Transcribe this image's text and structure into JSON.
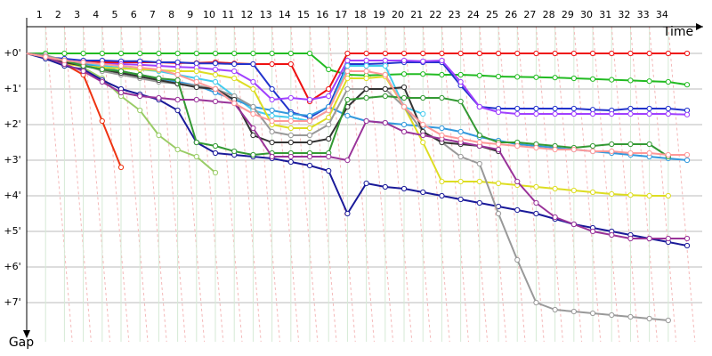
{
  "chart_data": {
    "type": "line",
    "x_label": "Time",
    "y_label": "Gap",
    "x": [
      0,
      1,
      2,
      3,
      4,
      5,
      6,
      7,
      8,
      9,
      10,
      11,
      12,
      13,
      14,
      15,
      16,
      17,
      18,
      19,
      20,
      21,
      22,
      23,
      24,
      25,
      26,
      27,
      28,
      29,
      30,
      31,
      32,
      33,
      34,
      35
    ],
    "xlim": [
      0,
      35.8
    ],
    "xticks": [
      1,
      2,
      3,
      4,
      5,
      6,
      7,
      8,
      9,
      10,
      11,
      12,
      13,
      14,
      15,
      16,
      17,
      18,
      19,
      20,
      21,
      22,
      23,
      24,
      25,
      26,
      27,
      28,
      29,
      30,
      31,
      32,
      33,
      34
    ],
    "ylim": [
      -0.75,
      8.1
    ],
    "yticks": [
      {
        "value": 0,
        "label": "+0'"
      },
      {
        "value": 1,
        "label": "+1'"
      },
      {
        "value": 2,
        "label": "+2'"
      },
      {
        "value": 3,
        "label": "+3'"
      },
      {
        "value": 4,
        "label": "+4'"
      },
      {
        "value": 5,
        "label": "+5'"
      },
      {
        "value": 6,
        "label": "+6'"
      },
      {
        "value": 7,
        "label": "+7'"
      }
    ],
    "grid": true,
    "series": [
      {
        "color": "#22bb22",
        "values": [
          0,
          0,
          0,
          0,
          0,
          0,
          0,
          0,
          0,
          0,
          0,
          0,
          0,
          0,
          0,
          0,
          0.45,
          0.6,
          0.62,
          0.6,
          0.58,
          0.58,
          0.6,
          0.6,
          0.62,
          0.65,
          0.66,
          0.67,
          0.68,
          0.7,
          0.72,
          0.74,
          0.76,
          0.78,
          0.8,
          0.88
        ]
      },
      {
        "color": "#ee1111",
        "values": [
          0,
          0.1,
          0.2,
          0.25,
          0.25,
          0.25,
          0.25,
          0.25,
          0.27,
          0.27,
          0.25,
          0.28,
          0.3,
          0.3,
          0.3,
          1.35,
          1.0,
          0,
          0,
          0,
          0,
          0,
          0,
          0,
          0,
          0,
          0,
          0,
          0,
          0,
          0,
          0,
          0,
          0,
          0,
          0
        ]
      },
      {
        "color": "#ee3311",
        "values": [
          0,
          0.1,
          0.3,
          0.6,
          1.9,
          3.2,
          null,
          null,
          null,
          null,
          null,
          null,
          null,
          null,
          null,
          null,
          null,
          null,
          null,
          null,
          null,
          null,
          null,
          null,
          null,
          null,
          null,
          null,
          null,
          null,
          null,
          null,
          null,
          null,
          null,
          null
        ]
      },
      {
        "color": "#99cc66",
        "values": [
          0,
          0.1,
          0.2,
          0.4,
          0.7,
          1.2,
          1.6,
          2.3,
          2.7,
          2.9,
          3.35,
          null,
          null,
          null,
          null,
          null,
          null,
          null,
          null,
          null,
          null,
          null,
          null,
          null,
          null,
          null,
          null,
          null,
          null,
          null,
          null,
          null,
          null,
          null,
          null,
          null
        ]
      },
      {
        "color": "#1a1a99",
        "values": [
          0,
          0.15,
          0.35,
          0.45,
          0.75,
          1.0,
          1.15,
          1.3,
          1.6,
          2.5,
          2.8,
          2.85,
          2.9,
          2.95,
          3.05,
          3.15,
          3.3,
          4.5,
          3.65,
          3.75,
          3.8,
          3.9,
          4.0,
          4.1,
          4.2,
          4.3,
          4.4,
          4.5,
          4.65,
          4.8,
          4.9,
          5.0,
          5.1,
          5.2,
          5.3,
          5.4
        ]
      },
      {
        "color": "#2233cc",
        "values": [
          0,
          0.1,
          0.15,
          0.2,
          0.2,
          0.22,
          0.22,
          0.25,
          0.25,
          0.28,
          0.28,
          0.3,
          0.3,
          1.0,
          1.65,
          1.8,
          1.5,
          0.3,
          0.3,
          0.28,
          0.25,
          0.25,
          0.25,
          0.9,
          1.5,
          1.55,
          1.55,
          1.55,
          1.55,
          1.55,
          1.58,
          1.6,
          1.55,
          1.55,
          1.55,
          1.6
        ]
      },
      {
        "color": "#a040ff",
        "values": [
          0,
          0.1,
          0.2,
          0.25,
          0.3,
          0.3,
          0.32,
          0.35,
          0.38,
          0.4,
          0.45,
          0.5,
          0.8,
          1.3,
          1.25,
          1.3,
          1.2,
          0.2,
          0.2,
          0.2,
          0.2,
          0.22,
          0.2,
          0.8,
          1.5,
          1.65,
          1.7,
          1.7,
          1.7,
          1.7,
          1.7,
          1.7,
          1.7,
          1.7,
          1.7,
          1.72
        ]
      },
      {
        "color": "#44ccee",
        "values": [
          0,
          0.1,
          0.2,
          0.3,
          0.35,
          0.4,
          0.45,
          0.5,
          0.6,
          0.7,
          0.8,
          1.2,
          1.6,
          1.75,
          1.8,
          1.9,
          1.6,
          0.35,
          0.35,
          0.35,
          1.5,
          1.7,
          null,
          null,
          null,
          null,
          null,
          null,
          null,
          null,
          null,
          null,
          null,
          null,
          null,
          null
        ]
      },
      {
        "color": "#3399dd",
        "values": [
          0,
          0.1,
          0.2,
          0.3,
          0.4,
          0.5,
          0.6,
          0.7,
          0.8,
          0.9,
          1.1,
          1.3,
          1.5,
          1.6,
          1.7,
          1.75,
          1.5,
          1.75,
          1.9,
          1.95,
          2.0,
          2.05,
          2.1,
          2.2,
          2.35,
          2.45,
          2.55,
          2.6,
          2.65,
          2.7,
          2.75,
          2.8,
          2.85,
          2.9,
          2.95,
          3.0
        ]
      },
      {
        "color": "#dddd22",
        "values": [
          0,
          0.1,
          0.3,
          0.35,
          0.4,
          0.42,
          0.45,
          0.47,
          0.5,
          0.5,
          0.6,
          0.7,
          1.0,
          2.0,
          2.1,
          2.1,
          1.8,
          0.7,
          0.7,
          0.65,
          1.5,
          2.5,
          3.6,
          3.6,
          3.6,
          3.65,
          3.7,
          3.75,
          3.8,
          3.85,
          3.9,
          3.95,
          3.98,
          4.0,
          4.0,
          null
        ]
      },
      {
        "color": "#999999",
        "values": [
          0,
          0.05,
          0.2,
          0.3,
          0.5,
          0.6,
          0.7,
          0.8,
          0.85,
          0.9,
          1.0,
          1.2,
          1.5,
          2.2,
          2.3,
          2.3,
          2.0,
          1.0,
          1.0,
          1.0,
          1.5,
          2.2,
          2.5,
          2.9,
          3.1,
          4.5,
          5.8,
          7.0,
          7.2,
          7.25,
          7.3,
          7.35,
          7.4,
          7.45,
          7.5,
          null
        ]
      },
      {
        "color": "#333333",
        "values": [
          0,
          0.1,
          0.25,
          0.35,
          0.45,
          0.55,
          0.65,
          0.75,
          0.85,
          0.95,
          1.0,
          1.3,
          2.3,
          2.5,
          2.5,
          2.5,
          2.4,
          1.5,
          1.0,
          1.0,
          0.95,
          2.2,
          2.5,
          2.55,
          2.6,
          2.75,
          null,
          null,
          null,
          null,
          null,
          null,
          null,
          null,
          null,
          null
        ]
      },
      {
        "color": "#339933",
        "values": [
          0,
          0.1,
          0.2,
          0.35,
          0.45,
          0.5,
          0.6,
          0.7,
          0.75,
          2.5,
          2.6,
          2.75,
          2.85,
          2.8,
          2.8,
          2.8,
          2.8,
          1.3,
          1.25,
          1.2,
          1.25,
          1.25,
          1.25,
          1.35,
          2.3,
          2.5,
          2.5,
          2.55,
          2.6,
          2.65,
          2.6,
          2.55,
          2.55,
          2.55,
          2.9,
          null
        ]
      },
      {
        "color": "#993399",
        "values": [
          0,
          0.1,
          0.3,
          0.5,
          0.8,
          1.1,
          1.2,
          1.25,
          1.3,
          1.3,
          1.35,
          1.4,
          2.1,
          2.9,
          2.9,
          2.9,
          2.9,
          3.0,
          1.9,
          1.95,
          2.2,
          2.3,
          2.4,
          2.5,
          2.6,
          2.7,
          3.6,
          4.2,
          4.6,
          4.8,
          5.0,
          5.1,
          5.2,
          5.2,
          5.2,
          5.2
        ]
      },
      {
        "color": "#ff9999",
        "values": [
          0,
          0.1,
          0.2,
          0.25,
          0.3,
          0.35,
          0.4,
          0.45,
          0.6,
          0.8,
          1.0,
          1.4,
          1.7,
          1.9,
          1.9,
          1.9,
          1.6,
          0.5,
          0.5,
          0.6,
          1.5,
          2.0,
          2.3,
          2.4,
          2.5,
          2.55,
          2.6,
          2.65,
          2.7,
          2.7,
          2.75,
          2.75,
          2.8,
          2.8,
          2.85,
          2.85
        ]
      }
    ]
  }
}
